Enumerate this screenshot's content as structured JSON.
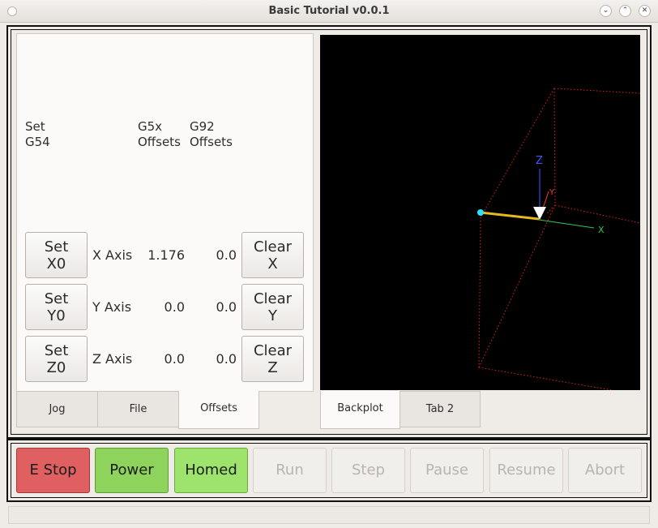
{
  "window": {
    "title": "Basic Tutorial v0.0.1",
    "buttons": [
      "minimize",
      "maximize",
      "close"
    ]
  },
  "offsets": {
    "headers": {
      "set": "Set\nG54",
      "g5x": "G5x\nOffsets",
      "g92": "G92\nOffsets"
    },
    "rows": [
      {
        "set_label": "Set\nX0",
        "axis": "X Axis",
        "g5x": "1.176",
        "g92": "0.0",
        "clear_label": "Clear\nX"
      },
      {
        "set_label": "Set\nY0",
        "axis": "Y Axis",
        "g5x": "0.0",
        "g92": "0.0",
        "clear_label": "Clear\nY"
      },
      {
        "set_label": "Set\nZ0",
        "axis": "Z Axis",
        "g5x": "0.0",
        "g92": "0.0",
        "clear_label": "Clear\nZ"
      }
    ]
  },
  "left_tabs": [
    {
      "label": "Jog",
      "active": false
    },
    {
      "label": "File",
      "active": false
    },
    {
      "label": "Offsets",
      "active": true
    }
  ],
  "right_tabs": [
    {
      "label": "Backplot",
      "active": true
    },
    {
      "label": "Tab 2",
      "active": false
    }
  ],
  "backplot": {
    "axis_labels": {
      "z": "Z",
      "y": "Y",
      "x": "X"
    },
    "colors": {
      "z": "#3b5cff",
      "y": "#ff3b3b",
      "x": "#34c759",
      "path": "#e6b91e",
      "bounds": "#e02020",
      "tool": "#ffffff",
      "origin": "#29e0ff"
    }
  },
  "controls": [
    {
      "label": "E Stop",
      "state": "estop"
    },
    {
      "label": "Power",
      "state": "power"
    },
    {
      "label": "Homed",
      "state": "homed"
    },
    {
      "label": "Run",
      "state": "disabled"
    },
    {
      "label": "Step",
      "state": "disabled"
    },
    {
      "label": "Pause",
      "state": "disabled"
    },
    {
      "label": "Resume",
      "state": "disabled"
    },
    {
      "label": "Abort",
      "state": "disabled"
    }
  ]
}
